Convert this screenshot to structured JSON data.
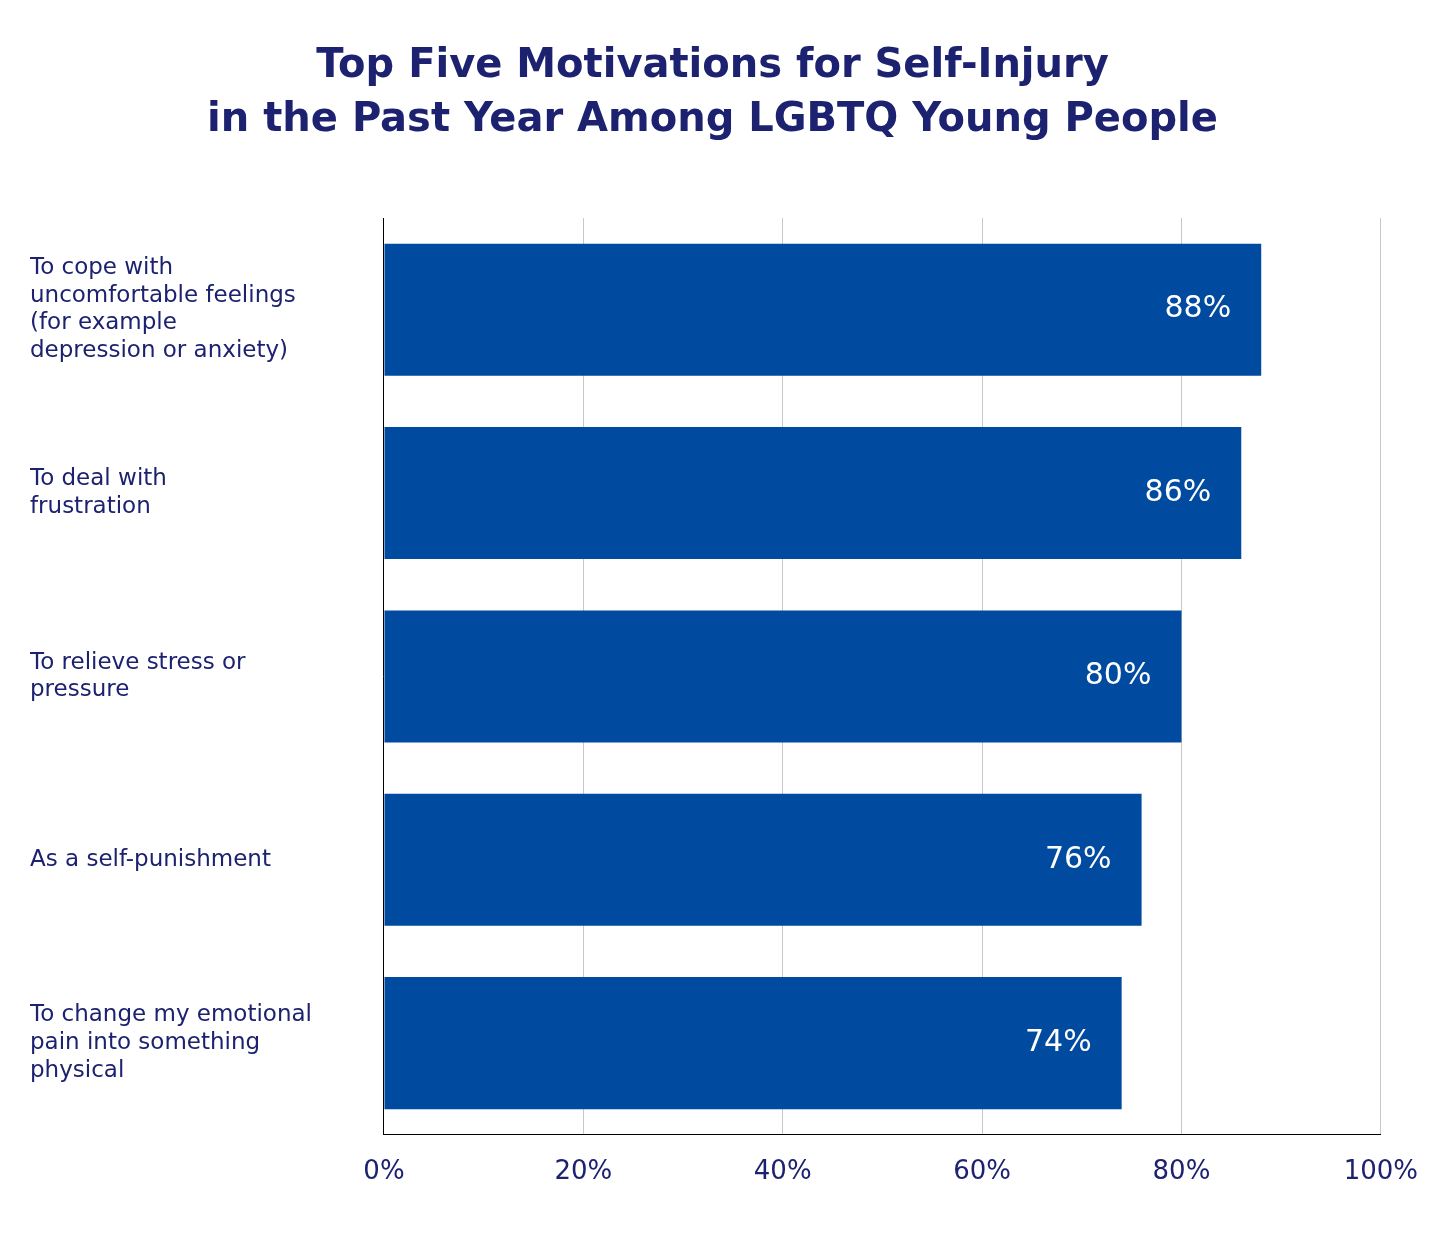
{
  "chart_data": {
    "type": "bar",
    "orientation": "horizontal",
    "title": [
      "Top Five Motivations for Self-Injury",
      "in the Past Year Among LGBTQ Young People"
    ],
    "categories": [
      "To cope with uncomfortable feelings (for example depression or anxiety)",
      "To deal with frustration",
      "To relieve stress or pressure",
      "As a self-punishment",
      "To change my emotional pain into something physical"
    ],
    "values": [
      88,
      86,
      80,
      76,
      74
    ],
    "value_labels": [
      "88%",
      "86%",
      "80%",
      "76%",
      "74%"
    ],
    "data_labels": true,
    "color": "#004a9f",
    "xlim": [
      0,
      100
    ],
    "xticks": [
      {
        "value": 0,
        "label": "0%"
      },
      {
        "value": 20,
        "label": "20%"
      },
      {
        "value": 40,
        "label": "40%"
      },
      {
        "value": 60,
        "label": "60%"
      },
      {
        "value": 80,
        "label": "80%"
      },
      {
        "value": 100,
        "label": "100%"
      }
    ],
    "grid": true
  }
}
